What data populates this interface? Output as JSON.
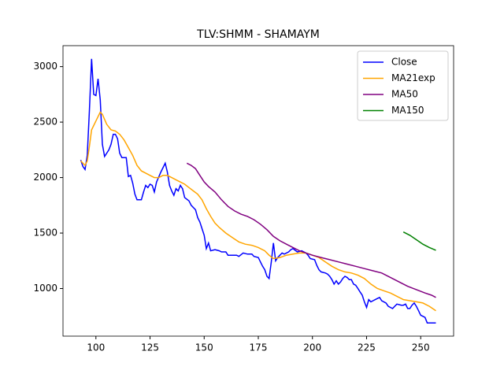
{
  "chart_data": {
    "type": "line",
    "title": "TLV:SHMM - SHAMAYM",
    "xlim": [
      84.8,
      265.2
    ],
    "xticks": [
      100,
      125,
      150,
      175,
      200,
      225,
      250
    ],
    "ylim": [
      571,
      3189
    ],
    "yticks": [
      1000,
      1500,
      2000,
      2500,
      3000
    ],
    "legend": "upper right",
    "series": [
      {
        "name": "Close",
        "color": "#0000ff",
        "x": [
          93,
          94,
          95,
          96,
          97,
          98,
          99,
          100,
          101,
          102,
          103,
          104,
          106,
          107,
          108,
          109,
          110,
          111,
          112,
          114,
          115,
          116,
          117,
          118,
          119,
          121,
          122,
          123,
          124,
          125,
          126,
          127,
          128,
          130,
          132,
          133,
          134,
          135,
          136,
          137,
          138,
          139,
          140,
          141,
          143,
          144,
          146,
          147,
          148,
          149,
          150,
          151,
          152,
          153,
          155,
          157,
          158,
          160,
          161,
          165,
          166,
          168,
          170,
          172,
          173,
          175,
          176,
          177,
          178,
          179,
          180,
          181,
          182,
          183,
          184,
          185,
          186,
          187,
          189,
          190,
          191,
          193,
          195,
          197,
          198,
          199,
          201,
          202,
          203,
          204,
          206,
          207,
          208,
          209,
          210,
          211,
          212,
          213,
          214,
          215,
          216,
          217,
          218,
          219,
          220,
          221,
          222,
          223,
          224,
          225,
          226,
          227,
          228,
          229,
          230,
          231,
          232,
          234,
          235,
          236,
          237,
          238,
          239,
          241,
          242,
          243,
          244,
          245,
          246,
          247,
          248,
          249,
          250,
          251,
          252,
          253,
          257
        ],
        "values": [
          2158,
          2100,
          2073,
          2200,
          2600,
          3070,
          2750,
          2740,
          2890,
          2700,
          2300,
          2190,
          2250,
          2300,
          2390,
          2390,
          2350,
          2220,
          2180,
          2180,
          2010,
          2020,
          1950,
          1850,
          1800,
          1800,
          1870,
          1930,
          1910,
          1940,
          1930,
          1870,
          1960,
          2050,
          2130,
          2050,
          1930,
          1880,
          1840,
          1900,
          1880,
          1930,
          1900,
          1820,
          1790,
          1750,
          1710,
          1640,
          1600,
          1540,
          1480,
          1360,
          1410,
          1340,
          1350,
          1340,
          1330,
          1330,
          1300,
          1300,
          1290,
          1320,
          1310,
          1310,
          1290,
          1280,
          1240,
          1200,
          1170,
          1110,
          1090,
          1240,
          1410,
          1250,
          1280,
          1300,
          1320,
          1310,
          1330,
          1350,
          1360,
          1330,
          1340,
          1320,
          1300,
          1270,
          1260,
          1210,
          1170,
          1150,
          1140,
          1130,
          1110,
          1080,
          1040,
          1070,
          1040,
          1060,
          1090,
          1110,
          1100,
          1080,
          1080,
          1040,
          1030,
          1000,
          970,
          940,
          880,
          830,
          900,
          880,
          890,
          900,
          910,
          920,
          890,
          870,
          840,
          830,
          820,
          840,
          860,
          850,
          850,
          860,
          820,
          820,
          850,
          870,
          840,
          800,
          760,
          750,
          740,
          690,
          690
        ]
      },
      {
        "name": "MA21exp",
        "color": "#ffa500",
        "x": [
          93,
          95,
          96,
          97,
          98,
          100,
          102,
          103,
          105,
          107,
          109,
          111,
          113,
          115,
          117,
          119,
          121,
          123,
          125,
          127,
          129,
          131,
          133,
          135,
          137,
          139,
          141,
          143,
          145,
          147,
          149,
          151,
          153,
          155,
          157,
          160,
          163,
          166,
          169,
          172,
          175,
          178,
          180,
          182,
          185,
          188,
          191,
          194,
          197,
          200,
          203,
          206,
          209,
          212,
          215,
          218,
          221,
          224,
          227,
          230,
          233,
          236,
          239,
          242,
          245,
          248,
          251,
          254,
          257
        ],
        "values": [
          2150,
          2110,
          2150,
          2280,
          2430,
          2510,
          2590,
          2570,
          2480,
          2430,
          2420,
          2390,
          2340,
          2270,
          2200,
          2110,
          2060,
          2040,
          2020,
          2000,
          2000,
          2020,
          2020,
          2000,
          1980,
          1960,
          1940,
          1910,
          1880,
          1850,
          1800,
          1720,
          1650,
          1590,
          1550,
          1500,
          1460,
          1420,
          1400,
          1390,
          1370,
          1340,
          1300,
          1270,
          1280,
          1300,
          1310,
          1320,
          1320,
          1300,
          1280,
          1240,
          1200,
          1170,
          1150,
          1140,
          1120,
          1090,
          1040,
          1000,
          980,
          960,
          930,
          900,
          890,
          880,
          870,
          840,
          800
        ]
      },
      {
        "name": "MA50",
        "color": "#800080",
        "x": [
          142,
          144,
          146,
          148,
          150,
          152,
          155,
          158,
          161,
          164,
          167,
          170,
          173,
          176,
          179,
          182,
          185,
          188,
          191,
          194,
          197,
          200,
          204,
          208,
          212,
          216,
          220,
          224,
          228,
          232,
          236,
          240,
          244,
          248,
          252,
          255,
          257
        ],
        "values": [
          2130,
          2110,
          2080,
          2020,
          1960,
          1920,
          1870,
          1800,
          1740,
          1700,
          1670,
          1650,
          1620,
          1580,
          1530,
          1470,
          1430,
          1400,
          1370,
          1340,
          1320,
          1300,
          1280,
          1260,
          1240,
          1220,
          1200,
          1180,
          1160,
          1140,
          1100,
          1060,
          1020,
          990,
          960,
          940,
          920
        ]
      },
      {
        "name": "MA150",
        "color": "#008000",
        "x": [
          242,
          245,
          248,
          251,
          254,
          257
        ],
        "values": [
          1510,
          1480,
          1440,
          1400,
          1370,
          1345
        ]
      }
    ]
  }
}
